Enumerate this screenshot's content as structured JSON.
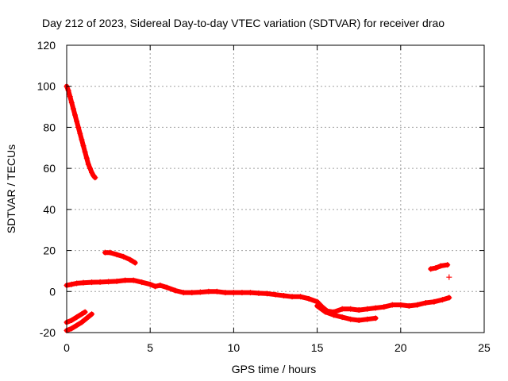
{
  "chart_data": {
    "type": "scatter",
    "title": "Day 212 of 2023, Sidereal Day-to-day VTEC variation (SDTVAR) for receiver drao",
    "xlabel": "GPS time / hours",
    "ylabel": "SDTVAR / TECUs",
    "xlim": [
      0,
      25
    ],
    "ylim": [
      -20,
      120
    ],
    "xticks": [
      0,
      5,
      10,
      15,
      20,
      25
    ],
    "yticks": [
      -20,
      0,
      20,
      40,
      60,
      80,
      100,
      120
    ],
    "grid": true,
    "marker": "+",
    "marker_color": "#ff0000",
    "series": [
      {
        "name": "steep-decline",
        "points": [
          [
            0.0,
            100
          ],
          [
            0.1,
            98
          ],
          [
            0.2,
            95
          ],
          [
            0.3,
            92
          ],
          [
            0.4,
            89
          ],
          [
            0.5,
            86
          ],
          [
            0.6,
            83
          ],
          [
            0.7,
            80
          ],
          [
            0.8,
            77
          ],
          [
            0.9,
            74
          ],
          [
            1.0,
            71
          ],
          [
            1.1,
            68
          ],
          [
            1.2,
            65
          ],
          [
            1.3,
            62
          ],
          [
            1.4,
            60
          ],
          [
            1.5,
            58
          ],
          [
            1.6,
            56.5
          ],
          [
            1.7,
            55.5
          ]
        ]
      },
      {
        "name": "main-trace",
        "points": [
          [
            0.0,
            3
          ],
          [
            0.3,
            3.5
          ],
          [
            0.6,
            4
          ],
          [
            1.0,
            4.3
          ],
          [
            1.5,
            4.5
          ],
          [
            2.0,
            4.6
          ],
          [
            2.5,
            4.8
          ],
          [
            3.0,
            5
          ],
          [
            3.5,
            5.5
          ],
          [
            4.0,
            5.5
          ],
          [
            4.5,
            4.5
          ],
          [
            5.0,
            3.5
          ],
          [
            5.3,
            2.5
          ],
          [
            5.6,
            3
          ],
          [
            6.0,
            2
          ],
          [
            6.5,
            0.5
          ],
          [
            7.0,
            -0.5
          ],
          [
            7.5,
            -0.5
          ],
          [
            8.0,
            -0.3
          ],
          [
            8.5,
            0
          ],
          [
            9.0,
            0
          ],
          [
            9.5,
            -0.5
          ],
          [
            10.0,
            -0.5
          ],
          [
            10.5,
            -0.5
          ],
          [
            11.0,
            -0.5
          ],
          [
            11.5,
            -0.8
          ],
          [
            12.0,
            -1
          ],
          [
            12.5,
            -1.5
          ],
          [
            13.0,
            -2
          ],
          [
            13.5,
            -2.5
          ],
          [
            14.0,
            -2.5
          ],
          [
            14.5,
            -3.5
          ],
          [
            15.0,
            -5
          ],
          [
            15.3,
            -7.5
          ],
          [
            15.6,
            -9.5
          ],
          [
            16.0,
            -10
          ],
          [
            16.5,
            -8.5
          ],
          [
            17.0,
            -8.5
          ],
          [
            17.5,
            -9
          ],
          [
            18.0,
            -8.5
          ],
          [
            18.5,
            -8
          ],
          [
            19.0,
            -7.5
          ],
          [
            19.5,
            -6.5
          ],
          [
            20.0,
            -6.5
          ],
          [
            20.5,
            -7
          ],
          [
            21.0,
            -6.5
          ],
          [
            21.5,
            -5.5
          ],
          [
            22.0,
            -5
          ],
          [
            22.5,
            -4
          ],
          [
            22.9,
            -3
          ]
        ]
      },
      {
        "name": "upper-arc",
        "points": [
          [
            2.3,
            19
          ],
          [
            2.6,
            19
          ],
          [
            3.0,
            18
          ],
          [
            3.4,
            17
          ],
          [
            3.8,
            15.5
          ],
          [
            4.1,
            14
          ]
        ]
      },
      {
        "name": "lower-branch",
        "points": [
          [
            15.0,
            -7
          ],
          [
            15.5,
            -10
          ],
          [
            16.0,
            -11.5
          ],
          [
            16.5,
            -12.5
          ],
          [
            17.0,
            -13.5
          ],
          [
            17.5,
            -14
          ],
          [
            18.0,
            -13.5
          ],
          [
            18.5,
            -13
          ]
        ]
      },
      {
        "name": "low-line-upper",
        "points": [
          [
            0.0,
            -15
          ],
          [
            0.3,
            -14
          ],
          [
            0.6,
            -12.5
          ],
          [
            0.9,
            -11
          ],
          [
            1.1,
            -10
          ]
        ]
      },
      {
        "name": "low-line-lower",
        "points": [
          [
            0.0,
            -19
          ],
          [
            0.3,
            -18
          ],
          [
            0.6,
            -16.5
          ],
          [
            0.9,
            -15
          ],
          [
            1.2,
            -13
          ],
          [
            1.5,
            -11
          ]
        ]
      },
      {
        "name": "late-segment",
        "points": [
          [
            21.8,
            11
          ],
          [
            22.1,
            11.5
          ],
          [
            22.4,
            12.5
          ],
          [
            22.8,
            13
          ]
        ]
      },
      {
        "name": "isolated-point",
        "points": [
          [
            22.9,
            7
          ]
        ]
      }
    ]
  }
}
